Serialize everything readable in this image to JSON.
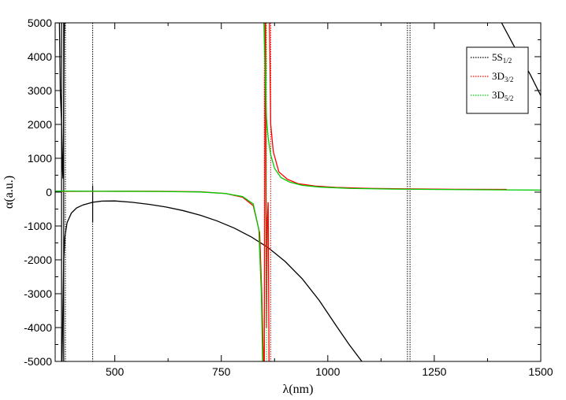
{
  "chart_data": {
    "type": "line",
    "xlabel": "λ(nm)",
    "ylabel": "α(a.u.)",
    "xlim": [
      360,
      1500
    ],
    "ylim": [
      -5000,
      5000
    ],
    "x_ticks": [
      500,
      750,
      1000,
      1250,
      1500
    ],
    "x_tick_labels": [
      "500",
      "750",
      "1000",
      "1250",
      "1500"
    ],
    "y_ticks": [
      -5000,
      -4000,
      -3000,
      -2000,
      -1000,
      0,
      1000,
      2000,
      3000,
      4000,
      5000
    ],
    "y_tick_labels": [
      "-5000",
      "-4000",
      "-3000",
      "-2000",
      "-1000",
      "0",
      "1000",
      "2000",
      "3000",
      "4000",
      "5000"
    ],
    "grid": false,
    "legend_position": "top-right",
    "legend": [
      {
        "main": "5S",
        "sub": "1/2",
        "color": "#000000"
      },
      {
        "main": "3D",
        "sub": "3/2",
        "color": "#ff0000"
      },
      {
        "main": "3D",
        "sub": "5/2",
        "color": "#00cc00"
      }
    ],
    "series": [
      {
        "legend_index": 0,
        "color": "#000000",
        "resonances": [
          {
            "x0": 378,
            "height": 6,
            "width": 6,
            "polarity": -1
          },
          {
            "x0": 384,
            "height": 4,
            "width": 3,
            "polarity": 1
          },
          {
            "x0": 448,
            "height": 0.05,
            "width": 0.4,
            "polarity": -1
          },
          {
            "x0": 1187,
            "height": 0,
            "width": 0.1,
            "polarity": -1
          },
          {
            "x0": 1193,
            "height": 0,
            "width": 0.1,
            "polarity": -1
          }
        ],
        "segments": [
          [
            [
              363,
              5000
            ],
            [
              370,
              5000
            ],
            [
              372,
              3000
            ],
            [
              375,
              2000
            ],
            [
              377,
              700
            ],
            [
              378.5,
              400
            ],
            [
              380,
              2500
            ],
            [
              381,
              4500
            ],
            [
              382,
              5000
            ]
          ],
          [
            [
              376,
              -5000
            ],
            [
              378,
              -3600
            ],
            [
              380,
              -2000
            ],
            [
              383,
              -1300
            ],
            [
              388,
              -900
            ],
            [
              398,
              -620
            ],
            [
              410,
              -470
            ],
            [
              425,
              -380
            ],
            [
              448,
              -300
            ]
          ],
          [
            [
              448,
              -300
            ],
            [
              470,
              -265
            ],
            [
              500,
              -260
            ],
            [
              540,
              -300
            ],
            [
              580,
              -360
            ],
            [
              620,
              -440
            ],
            [
              660,
              -545
            ],
            [
              700,
              -680
            ],
            [
              740,
              -850
            ],
            [
              780,
              -1060
            ],
            [
              820,
              -1320
            ],
            [
              860,
              -1640
            ],
            [
              900,
              -2050
            ],
            [
              940,
              -2560
            ],
            [
              980,
              -3200
            ],
            [
              1020,
              -3950
            ],
            [
              1050,
              -4500
            ],
            [
              1080,
              -5000
            ]
          ],
          [
            [
              1408,
              5000
            ],
            [
              1440,
              4250
            ],
            [
              1475,
              3480
            ],
            [
              1500,
              2850
            ]
          ]
        ],
        "spikes": [
          {
            "x": 448,
            "y1": 200,
            "y2": -900
          },
          {
            "x": 375,
            "y1": 5000,
            "y2": -5000
          },
          {
            "x": 380,
            "y1": 5000,
            "y2": -5000
          }
        ],
        "dotted_verticals": [
          384,
          448,
          1187,
          1193
        ]
      },
      {
        "legend_index": 1,
        "color": "#ff0000",
        "segments": [
          [
            [
              360,
              20
            ],
            [
              500,
              25
            ],
            [
              600,
              25
            ],
            [
              700,
              10
            ],
            [
              760,
              -40
            ],
            [
              800,
              -150
            ],
            [
              825,
              -400
            ],
            [
              840,
              -1200
            ],
            [
              845,
              -3000
            ],
            [
              849,
              -5000
            ]
          ],
          [
            [
              851,
              -5000
            ],
            [
              852,
              0
            ],
            [
              853,
              5000
            ]
          ],
          [
            [
              854,
              5000
            ],
            [
              856,
              -4000
            ],
            [
              858,
              -800
            ],
            [
              860,
              -300
            ],
            [
              862,
              -5000
            ]
          ],
          [
            [
              863,
              5000
            ],
            [
              866,
              2000
            ],
            [
              872,
              1200
            ],
            [
              885,
              600
            ],
            [
              905,
              380
            ],
            [
              930,
              250
            ],
            [
              970,
              180
            ],
            [
              1020,
              140
            ],
            [
              1100,
              110
            ],
            [
              1200,
              95
            ],
            [
              1300,
              85
            ],
            [
              1420,
              80
            ]
          ]
        ],
        "dotted_verticals": [
          851,
          866
        ]
      },
      {
        "legend_index": 2,
        "color": "#00cc00",
        "segments": [
          [
            [
              360,
              30
            ],
            [
              500,
              25
            ],
            [
              600,
              20
            ],
            [
              700,
              5
            ],
            [
              760,
              -40
            ],
            [
              800,
              -130
            ],
            [
              825,
              -350
            ],
            [
              838,
              -1100
            ],
            [
              844,
              -3000
            ],
            [
              847,
              -5000
            ]
          ],
          [
            [
              850,
              5000
            ],
            [
              852,
              4000
            ],
            [
              856,
              2200
            ],
            [
              860,
              1600
            ],
            [
              866,
              1100
            ],
            [
              875,
              700
            ],
            [
              890,
              430
            ],
            [
              910,
              300
            ],
            [
              940,
              200
            ],
            [
              980,
              150
            ],
            [
              1050,
              110
            ],
            [
              1150,
              90
            ],
            [
              1300,
              75
            ],
            [
              1500,
              60
            ]
          ]
        ],
        "dotted_verticals": [
          856
        ]
      }
    ]
  }
}
